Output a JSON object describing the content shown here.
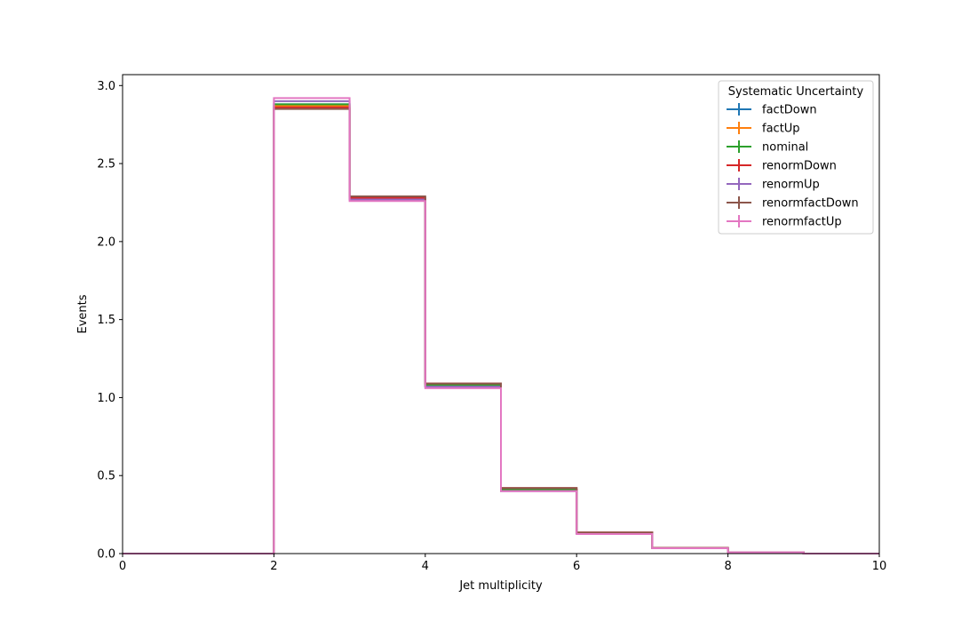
{
  "chart_data": {
    "type": "line",
    "style": "step-histogram",
    "xlabel": "Jet multiplicity",
    "ylabel": "Events",
    "xlim": [
      0,
      10
    ],
    "ylim": [
      0,
      3.07
    ],
    "x_ticks": [
      0,
      2,
      4,
      6,
      8,
      10
    ],
    "y_ticks": [
      0.0,
      0.5,
      1.0,
      1.5,
      2.0,
      2.5,
      3.0
    ],
    "y_tick_labels": [
      "0.0",
      "0.5",
      "1.0",
      "1.5",
      "2.0",
      "2.5",
      "3.0"
    ],
    "grid": false,
    "legend": {
      "title": "Systematic Uncertainty",
      "position": "top-right"
    },
    "bin_edges": [
      0,
      1,
      2,
      3,
      4,
      5,
      6,
      7,
      8,
      9,
      10
    ],
    "series": [
      {
        "name": "factDown",
        "color": "#1f77b4",
        "values": [
          0,
          0,
          2.88,
          2.27,
          1.07,
          0.41,
          0.13,
          0.035,
          0.008,
          0,
          0
        ]
      },
      {
        "name": "factUp",
        "color": "#ff7f0e",
        "values": [
          0,
          0,
          2.87,
          2.27,
          1.08,
          0.41,
          0.13,
          0.035,
          0.008,
          0,
          0
        ]
      },
      {
        "name": "nominal",
        "color": "#2ca02c",
        "values": [
          0,
          0,
          2.88,
          2.28,
          1.08,
          0.41,
          0.13,
          0.035,
          0.008,
          0,
          0
        ]
      },
      {
        "name": "renormDown",
        "color": "#d62728",
        "values": [
          0,
          0,
          2.86,
          2.28,
          1.09,
          0.42,
          0.135,
          0.036,
          0.008,
          0,
          0
        ]
      },
      {
        "name": "renormUp",
        "color": "#9467bd",
        "values": [
          0,
          0,
          2.9,
          2.27,
          1.07,
          0.4,
          0.13,
          0.034,
          0.008,
          0,
          0
        ]
      },
      {
        "name": "renormfactDown",
        "color": "#8c564b",
        "values": [
          0,
          0,
          2.85,
          2.29,
          1.09,
          0.42,
          0.135,
          0.036,
          0.008,
          0,
          0
        ]
      },
      {
        "name": "renormfactUp",
        "color": "#e377c2",
        "values": [
          0,
          0,
          2.92,
          2.26,
          1.06,
          0.4,
          0.125,
          0.034,
          0.008,
          0,
          0
        ]
      }
    ]
  }
}
